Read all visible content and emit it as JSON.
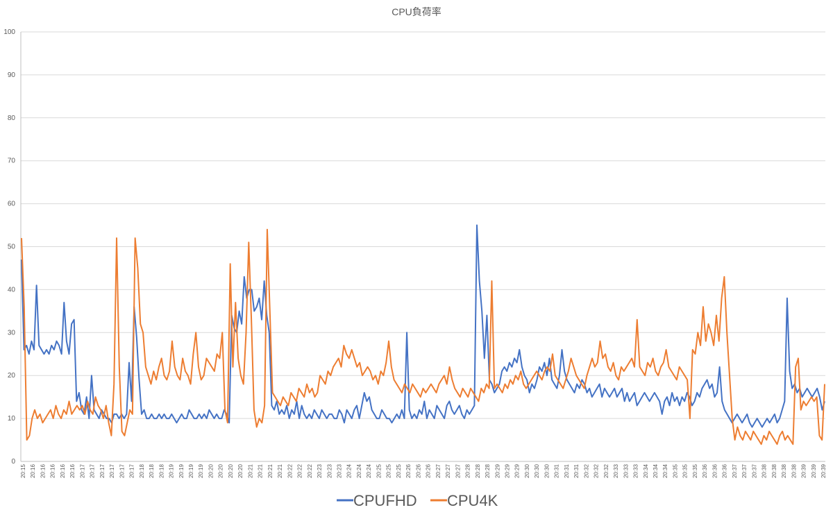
{
  "chart_data": {
    "type": "line",
    "title": "CPU負荷率",
    "xlabel": "",
    "ylabel": "",
    "ylim": [
      0,
      100
    ],
    "yticks": [
      0,
      10,
      20,
      30,
      40,
      50,
      60,
      70,
      80,
      90,
      100
    ],
    "grid": true,
    "legend_position": "bottom",
    "xtick_labels": [
      "20:15",
      "20:16",
      "20:16",
      "20:16",
      "20:16",
      "20:16",
      "20:17",
      "20:17",
      "20:17",
      "20:17",
      "20:17",
      "20:17",
      "20:18",
      "20:18",
      "20:18",
      "20:19",
      "20:19",
      "20:19",
      "20:19",
      "20:20",
      "20:20",
      "20:20",
      "20:20",
      "20:21",
      "20:21",
      "20:21",
      "20:21",
      "20:22",
      "20:22",
      "20:22",
      "20:23",
      "20:23",
      "20:23",
      "20:24",
      "20:24",
      "20:24",
      "20:25",
      "20:25",
      "20:25",
      "20:26",
      "20:26",
      "20:26",
      "20:27",
      "20:27",
      "20:27",
      "20:28",
      "20:28",
      "20:28",
      "20:29",
      "20:29",
      "20:29",
      "20:30",
      "20:30",
      "20:30",
      "20:31",
      "20:31",
      "20:31",
      "20:32",
      "20:32",
      "20:32",
      "20:33",
      "20:33",
      "20:33",
      "20:34",
      "20:34",
      "20:34",
      "20:35",
      "20:35",
      "20:35",
      "20:36",
      "20:36",
      "20:36",
      "20:37",
      "20:37",
      "20:37",
      "20:38",
      "20:38",
      "20:38",
      "20:38",
      "20:39",
      "20:39",
      "20:39"
    ],
    "series": [
      {
        "name": "CPUFHD",
        "color": "#4472c4",
        "values": [
          47,
          26,
          27,
          25,
          28,
          26,
          41,
          27,
          26,
          25,
          26,
          25,
          27,
          26,
          28,
          27,
          25,
          37,
          28,
          25,
          32,
          33,
          14,
          16,
          12,
          11,
          15,
          10,
          20,
          12,
          11,
          10,
          12,
          11,
          10,
          10,
          9,
          11,
          11,
          10,
          11,
          10,
          11,
          23,
          14,
          36,
          29,
          19,
          11,
          12,
          10,
          10,
          11,
          10,
          10,
          11,
          10,
          11,
          10,
          10,
          11,
          10,
          9,
          10,
          11,
          10,
          10,
          12,
          11,
          10,
          10,
          11,
          10,
          11,
          10,
          12,
          11,
          10,
          11,
          10,
          10,
          12,
          11,
          9,
          34,
          31,
          30,
          35,
          32,
          43,
          38,
          40,
          40,
          35,
          36,
          38,
          33,
          42,
          34,
          30,
          13,
          12,
          14,
          11,
          12,
          11,
          13,
          10,
          12,
          11,
          14,
          10,
          13,
          11,
          10,
          11,
          10,
          12,
          11,
          10,
          12,
          11,
          10,
          11,
          11,
          10,
          10,
          12,
          11,
          9,
          12,
          11,
          10,
          12,
          13,
          10,
          13,
          16,
          14,
          15,
          12,
          11,
          10,
          10,
          12,
          11,
          10,
          10,
          9,
          10,
          11,
          10,
          12,
          10,
          30,
          12,
          10,
          11,
          10,
          12,
          11,
          14,
          10,
          12,
          11,
          10,
          13,
          12,
          11,
          10,
          13,
          14,
          12,
          11,
          12,
          13,
          11,
          10,
          12,
          11,
          12,
          13,
          55,
          42,
          35,
          24,
          34,
          19,
          18,
          16,
          17,
          18,
          21,
          22,
          21,
          23,
          22,
          24,
          23,
          26,
          22,
          20,
          19,
          16,
          18,
          17,
          19,
          22,
          21,
          23,
          20,
          24,
          19,
          18,
          17,
          20,
          26,
          21,
          19,
          18,
          17,
          16,
          18,
          17,
          19,
          18,
          16,
          17,
          15,
          16,
          17,
          18,
          15,
          17,
          16,
          15,
          16,
          17,
          15,
          16,
          17,
          14,
          16,
          14,
          15,
          16,
          13,
          14,
          15,
          16,
          15,
          14,
          15,
          16,
          15,
          14,
          11,
          14,
          15,
          13,
          16,
          14,
          15,
          13,
          15,
          14,
          16,
          15,
          13,
          14,
          16,
          15,
          17,
          18,
          19,
          17,
          18,
          15,
          16,
          22,
          14,
          12,
          11,
          10,
          9,
          10,
          11,
          10,
          9,
          10,
          11,
          9,
          8,
          9,
          10,
          9,
          8,
          9,
          10,
          9,
          10,
          11,
          9,
          10,
          12,
          14,
          38,
          21,
          17,
          18,
          16,
          17,
          15,
          16,
          17,
          16,
          15,
          16,
          17,
          15,
          12,
          14
        ]
      },
      {
        "name": "CPU4K",
        "color": "#ed7d31",
        "values": [
          52,
          36,
          5,
          6,
          10,
          12,
          10,
          11,
          9,
          10,
          11,
          12,
          10,
          13,
          11,
          10,
          12,
          11,
          14,
          11,
          12,
          13,
          12,
          13,
          11,
          14,
          12,
          11,
          15,
          13,
          12,
          10,
          13,
          9,
          6,
          18,
          52,
          22,
          7,
          6,
          9,
          12,
          11,
          52,
          45,
          32,
          30,
          22,
          20,
          18,
          21,
          19,
          22,
          24,
          20,
          19,
          21,
          28,
          22,
          20,
          19,
          24,
          21,
          20,
          18,
          25,
          30,
          22,
          19,
          20,
          24,
          23,
          22,
          21,
          25,
          24,
          30,
          12,
          9,
          46,
          22,
          37,
          24,
          20,
          18,
          30,
          51,
          33,
          12,
          8,
          10,
          9,
          13,
          54,
          35,
          16,
          15,
          14,
          13,
          15,
          14,
          13,
          16,
          15,
          14,
          17,
          16,
          15,
          18,
          16,
          17,
          15,
          16,
          20,
          19,
          18,
          21,
          20,
          22,
          23,
          24,
          22,
          27,
          25,
          24,
          26,
          24,
          22,
          23,
          20,
          21,
          22,
          21,
          19,
          20,
          18,
          21,
          20,
          23,
          28,
          22,
          19,
          18,
          17,
          16,
          18,
          17,
          16,
          18,
          17,
          16,
          15,
          17,
          16,
          17,
          18,
          17,
          16,
          18,
          19,
          20,
          18,
          22,
          19,
          17,
          16,
          15,
          17,
          16,
          15,
          17,
          16,
          15,
          14,
          17,
          16,
          18,
          17,
          42,
          17,
          18,
          17,
          16,
          18,
          17,
          19,
          18,
          20,
          19,
          21,
          18,
          17,
          18,
          19,
          20,
          21,
          20,
          19,
          21,
          22,
          21,
          25,
          20,
          19,
          18,
          17,
          19,
          21,
          24,
          22,
          20,
          19,
          18,
          17,
          20,
          22,
          24,
          22,
          23,
          28,
          24,
          25,
          22,
          21,
          23,
          20,
          19,
          22,
          21,
          22,
          23,
          24,
          22,
          33,
          22,
          21,
          20,
          23,
          22,
          24,
          21,
          20,
          22,
          23,
          26,
          22,
          21,
          20,
          19,
          22,
          21,
          20,
          19,
          10,
          26,
          25,
          30,
          27,
          36,
          28,
          32,
          30,
          27,
          34,
          28,
          38,
          43,
          30,
          20,
          10,
          5,
          8,
          6,
          5,
          7,
          6,
          5,
          7,
          6,
          5,
          4,
          6,
          5,
          7,
          6,
          5,
          4,
          6,
          7,
          5,
          6,
          5,
          4,
          22,
          24,
          12,
          14,
          13,
          14,
          15,
          14,
          15,
          6,
          5,
          18
        ]
      }
    ]
  }
}
